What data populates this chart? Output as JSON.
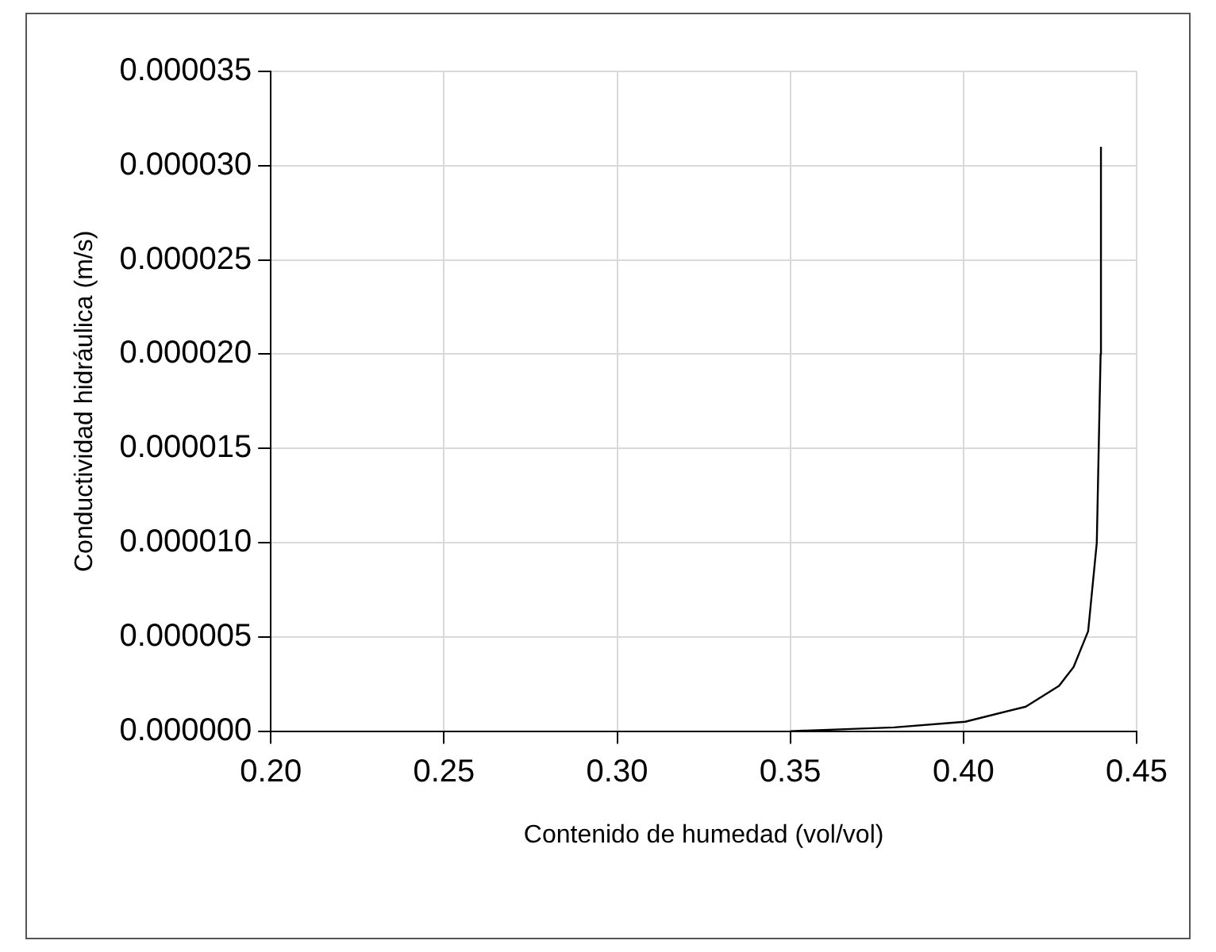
{
  "chart_data": {
    "type": "line",
    "xlabel": "Contenido de humedad (vol/vol)",
    "ylabel": "Conductividad hidráulica (m/s)",
    "series": [
      {
        "color": "#000000",
        "x": [
          0.35,
          0.38,
          0.4005,
          0.418,
          0.4276,
          0.4318,
          0.436,
          0.4385,
          0.4396,
          0.4397
        ],
        "values": [
          0,
          2e-07,
          5e-07,
          1.3e-06,
          2.4e-06,
          3.4e-06,
          5.3e-06,
          1e-05,
          2e-05,
          3.1e-05
        ]
      }
    ],
    "xlim": [
      0.2,
      0.45
    ],
    "xticks": [
      {
        "value": 0.2,
        "label": "0.20"
      },
      {
        "value": 0.25,
        "label": "0.25"
      },
      {
        "value": 0.3,
        "label": "0.30"
      },
      {
        "value": 0.35,
        "label": "0.35"
      },
      {
        "value": 0.4,
        "label": "0.40"
      },
      {
        "value": 0.45,
        "label": "0.45"
      }
    ],
    "ylim": [
      0,
      3.5e-05
    ],
    "yticks": [
      {
        "value": 0,
        "label": "0.000000"
      },
      {
        "value": 5e-06,
        "label": "0.000005"
      },
      {
        "value": 1e-05,
        "label": "0.000010"
      },
      {
        "value": 1.5e-05,
        "label": "0.000015"
      },
      {
        "value": 2e-05,
        "label": "0.000020"
      },
      {
        "value": 2.5e-05,
        "label": "0.000025"
      },
      {
        "value": 3e-05,
        "label": "0.000030"
      },
      {
        "value": 3.5e-05,
        "label": "0.000035"
      }
    ],
    "grid": true,
    "marker": "none",
    "line_style": "solid"
  }
}
